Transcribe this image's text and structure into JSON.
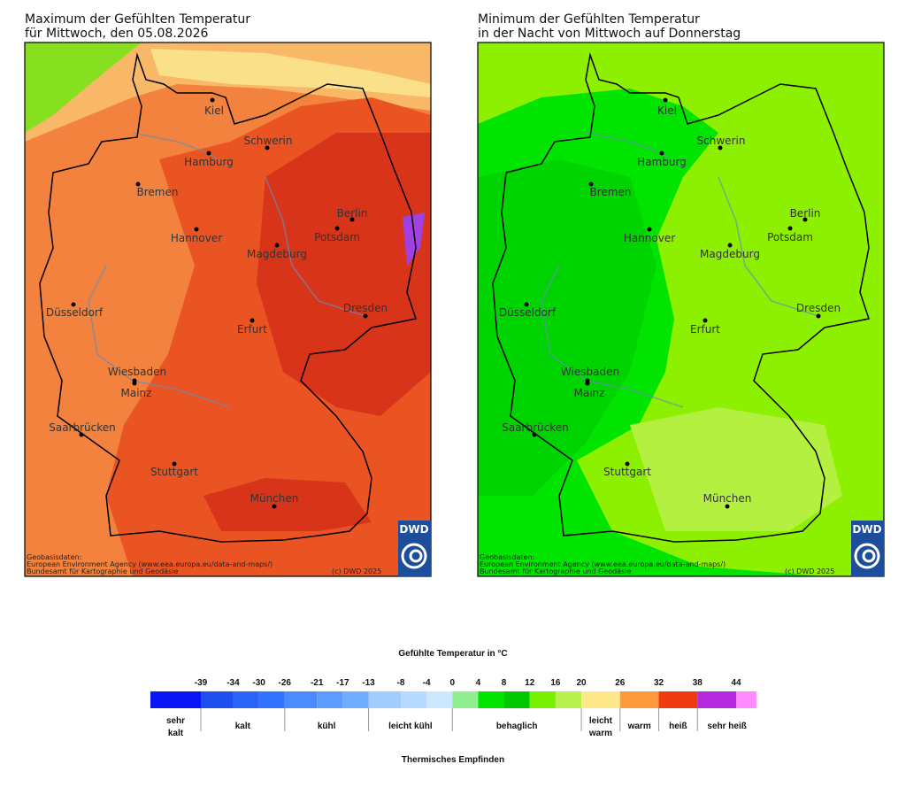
{
  "maps": [
    {
      "title": [
        "Maximum der Gefühlten Temperatur",
        "für Mittwoch, den 05.08.2026"
      ]
    },
    {
      "title": [
        "Minimum der Gefühlten Temperatur",
        "in der Nacht von Mittwoch auf Donnerstag"
      ]
    }
  ],
  "cities": [
    "Kiel",
    "Schwerin",
    "Hamburg",
    "Bremen",
    "Berlin",
    "Potsdam",
    "Hannover",
    "Magdeburg",
    "Düsseldorf",
    "Dresden",
    "Erfurt",
    "Wiesbaden",
    "Mainz",
    "Saarbrücken",
    "Stuttgart",
    "München"
  ],
  "attribution": [
    "Geobasisdaten:",
    "European Environment Agency (www.eea.europa.eu/data-and-maps/)",
    "Bundesamt für Kartographie und Geodäsie"
  ],
  "copyright": "(c) DWD 2025",
  "logo": "DWD",
  "legend": {
    "title": "Gefühlte Temperatur in °C",
    "ticks": [
      -39,
      -34,
      -30,
      -26,
      -21,
      -17,
      -13,
      -8,
      -4,
      0,
      4,
      8,
      12,
      16,
      20,
      26,
      32,
      38,
      44
    ],
    "colors": [
      "#0a14f5",
      "#1e50f0",
      "#2864f8",
      "#3274ff",
      "#4a8cff",
      "#5c9cff",
      "#70acff",
      "#a2cdff",
      "#b6daff",
      "#cce8ff",
      "#90f090",
      "#00e400",
      "#00c800",
      "#78f000",
      "#b8f050",
      "#ffe88a",
      "#ff9a3c",
      "#f03a10",
      "#b428e0",
      "#ff8aff"
    ],
    "categories": [
      [
        "sehr",
        "kalt"
      ],
      [
        "kalt"
      ],
      [
        "kühl"
      ],
      [
        "leicht kühl"
      ],
      [
        "behaglich"
      ],
      [
        "leicht",
        "warm"
      ],
      [
        "warm"
      ],
      [
        "heiß"
      ],
      [
        "sehr heiß"
      ]
    ],
    "footer": "Thermisches Empfinden"
  }
}
